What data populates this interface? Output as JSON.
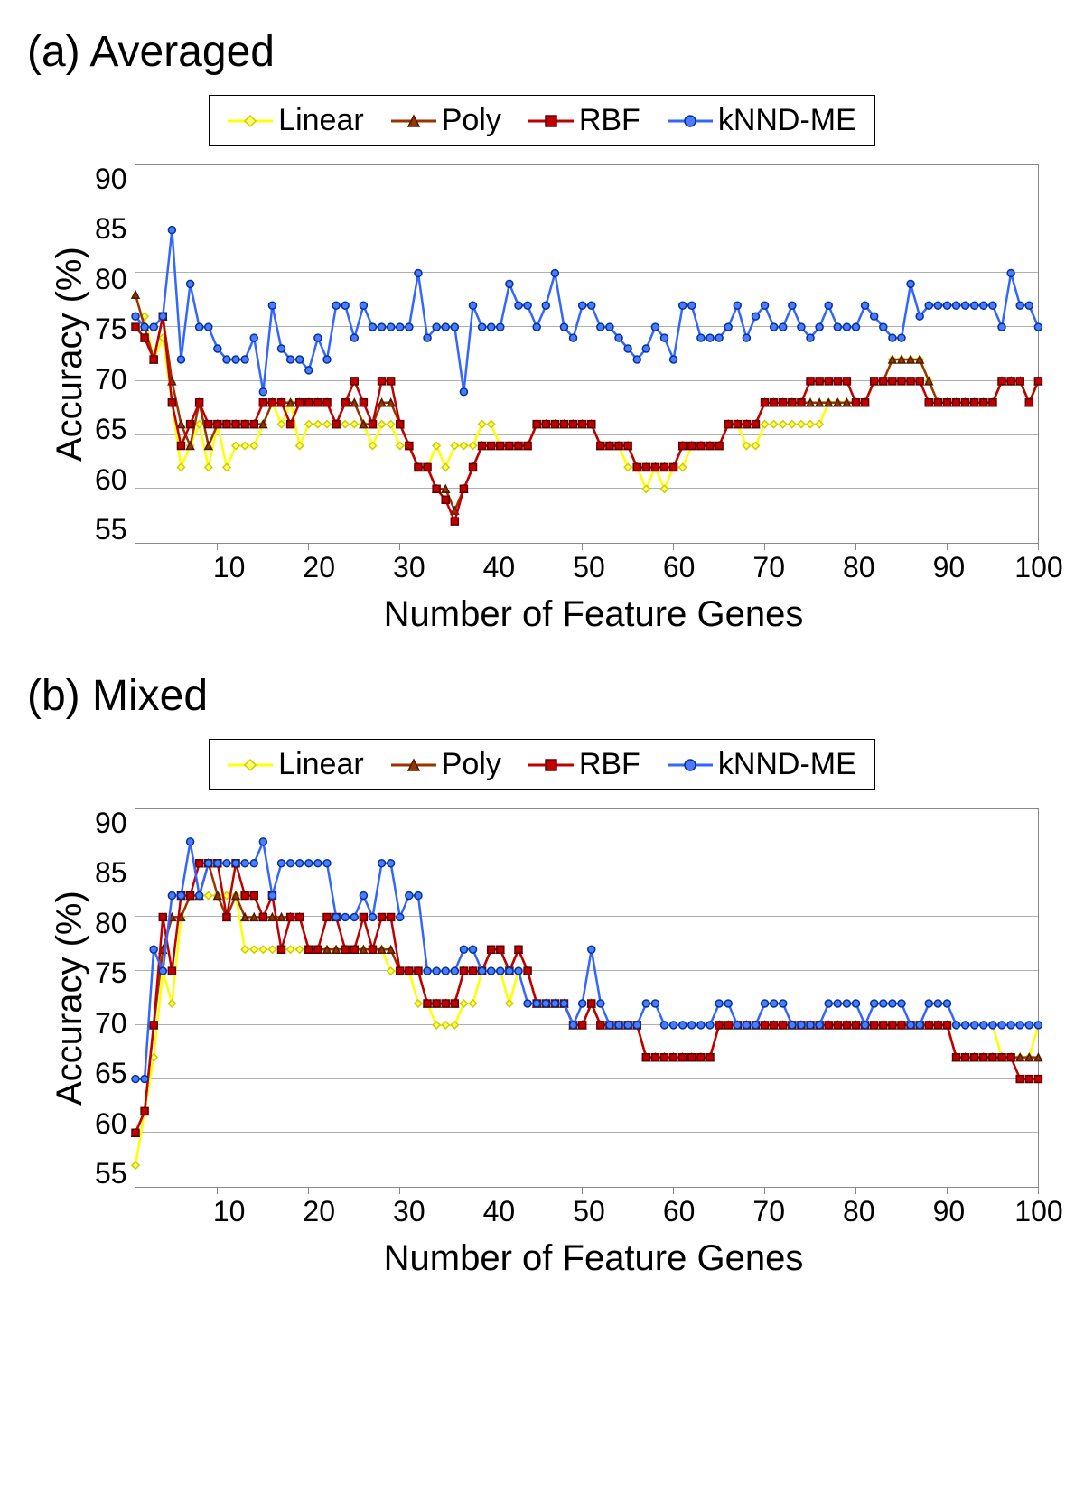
{
  "panel_a": {
    "title": "(a) Averaged",
    "legend": {
      "items": [
        {
          "label": "Linear",
          "color": "#ffff00",
          "marker": "diamond",
          "marker_fill": "#ffff66",
          "marker_stroke": "#cccc00"
        },
        {
          "label": "Poly",
          "color": "#993300",
          "marker": "triangle",
          "marker_fill": "#993300",
          "marker_stroke": "#4d1a00"
        },
        {
          "label": "RBF",
          "color": "#c00000",
          "marker": "square",
          "marker_fill": "#c00000",
          "marker_stroke": "#600000"
        },
        {
          "label": "kNND-ME",
          "color": "#3366ff",
          "marker": "circle",
          "marker_fill": "#4d7aff",
          "marker_stroke": "#003399"
        }
      ]
    },
    "chart": {
      "type": "line",
      "xlabel": "Number of Feature Genes",
      "ylabel": "Accuracy (%)",
      "xlim": [
        1,
        100
      ],
      "ylim": [
        55,
        90
      ],
      "yticks": [
        55,
        60,
        65,
        70,
        75,
        80,
        85,
        90
      ],
      "xticks": [
        10,
        20,
        30,
        40,
        50,
        60,
        70,
        80,
        90,
        100
      ],
      "background_color": "#ffffff",
      "grid_color": "#b0b0b0",
      "axis_color": "#888888",
      "label_fontsize": 40,
      "tick_fontsize": 32,
      "line_width": 2.5,
      "marker_size": 8,
      "series": [
        {
          "name": "Linear",
          "color": "#ffff00",
          "marker": "diamond",
          "marker_fill": "#ffff66",
          "marker_stroke": "#cccc00",
          "y": [
            76,
            76,
            72,
            74,
            68,
            62,
            64,
            66,
            62,
            66,
            62,
            64,
            64,
            64,
            66,
            68,
            66,
            68,
            64,
            66,
            66,
            66,
            66,
            66,
            66,
            66,
            64,
            66,
            66,
            64,
            64,
            62,
            62,
            64,
            62,
            64,
            64,
            64,
            66,
            66,
            64,
            64,
            64,
            64,
            66,
            66,
            66,
            66,
            66,
            66,
            66,
            64,
            64,
            64,
            62,
            62,
            60,
            62,
            60,
            62,
            62,
            64,
            64,
            64,
            64,
            66,
            66,
            64,
            64,
            66,
            66,
            66,
            66,
            66,
            66,
            66,
            68,
            68,
            68,
            68,
            68,
            70,
            70,
            72,
            72,
            72,
            72,
            70,
            68,
            68,
            68,
            68,
            68,
            68,
            68,
            70,
            70,
            70,
            68,
            70
          ]
        },
        {
          "name": "Poly",
          "color": "#993300",
          "marker": "triangle",
          "marker_fill": "#993300",
          "marker_stroke": "#4d1a00",
          "y": [
            78,
            75,
            72,
            76,
            70,
            66,
            64,
            68,
            64,
            66,
            66,
            66,
            66,
            66,
            66,
            68,
            68,
            68,
            68,
            68,
            68,
            68,
            66,
            68,
            68,
            66,
            66,
            68,
            68,
            66,
            64,
            62,
            62,
            60,
            60,
            58,
            60,
            62,
            64,
            64,
            64,
            64,
            64,
            64,
            66,
            66,
            66,
            66,
            66,
            66,
            66,
            64,
            64,
            64,
            64,
            62,
            62,
            62,
            62,
            62,
            64,
            64,
            64,
            64,
            64,
            66,
            66,
            66,
            66,
            68,
            68,
            68,
            68,
            68,
            68,
            68,
            68,
            68,
            68,
            68,
            68,
            70,
            70,
            72,
            72,
            72,
            72,
            70,
            68,
            68,
            68,
            68,
            68,
            68,
            68,
            70,
            70,
            70,
            68,
            70
          ]
        },
        {
          "name": "RBF",
          "color": "#c00000",
          "marker": "square",
          "marker_fill": "#c00000",
          "marker_stroke": "#600000",
          "y": [
            75,
            74,
            72,
            76,
            68,
            64,
            66,
            68,
            66,
            66,
            66,
            66,
            66,
            66,
            68,
            68,
            68,
            66,
            68,
            68,
            68,
            68,
            66,
            68,
            70,
            68,
            66,
            70,
            70,
            66,
            64,
            62,
            62,
            60,
            59,
            57,
            60,
            62,
            64,
            64,
            64,
            64,
            64,
            64,
            66,
            66,
            66,
            66,
            66,
            66,
            66,
            64,
            64,
            64,
            64,
            62,
            62,
            62,
            62,
            62,
            64,
            64,
            64,
            64,
            64,
            66,
            66,
            66,
            66,
            68,
            68,
            68,
            68,
            68,
            70,
            70,
            70,
            70,
            70,
            68,
            68,
            70,
            70,
            70,
            70,
            70,
            70,
            68,
            68,
            68,
            68,
            68,
            68,
            68,
            68,
            70,
            70,
            70,
            68,
            70
          ]
        },
        {
          "name": "kNND-ME",
          "color": "#3366ff",
          "marker": "circle",
          "marker_fill": "#4d7aff",
          "marker_stroke": "#003399",
          "y": [
            76,
            75,
            75,
            76,
            84,
            72,
            79,
            75,
            75,
            73,
            72,
            72,
            72,
            74,
            69,
            77,
            73,
            72,
            72,
            71,
            74,
            72,
            77,
            77,
            74,
            77,
            75,
            75,
            75,
            75,
            75,
            80,
            74,
            75,
            75,
            75,
            69,
            77,
            75,
            75,
            75,
            79,
            77,
            77,
            75,
            77,
            80,
            75,
            74,
            77,
            77,
            75,
            75,
            74,
            73,
            72,
            73,
            75,
            74,
            72,
            77,
            77,
            74,
            74,
            74,
            75,
            77,
            74,
            76,
            77,
            75,
            75,
            77,
            75,
            74,
            75,
            77,
            75,
            75,
            75,
            77,
            76,
            75,
            74,
            74,
            79,
            76,
            77,
            77,
            77,
            77,
            77,
            77,
            77,
            77,
            75,
            80,
            77,
            77,
            75
          ]
        }
      ]
    }
  },
  "panel_b": {
    "title": "(b) Mixed",
    "legend": {
      "items": [
        {
          "label": "Linear",
          "color": "#ffff00",
          "marker": "diamond",
          "marker_fill": "#ffff66",
          "marker_stroke": "#cccc00"
        },
        {
          "label": "Poly",
          "color": "#993300",
          "marker": "triangle",
          "marker_fill": "#993300",
          "marker_stroke": "#4d1a00"
        },
        {
          "label": "RBF",
          "color": "#c00000",
          "marker": "square",
          "marker_fill": "#c00000",
          "marker_stroke": "#600000"
        },
        {
          "label": "kNND-ME",
          "color": "#3366ff",
          "marker": "circle",
          "marker_fill": "#4d7aff",
          "marker_stroke": "#003399"
        }
      ]
    },
    "chart": {
      "type": "line",
      "xlabel": "Number of Feature Genes",
      "ylabel": "Accuracy (%)",
      "xlim": [
        1,
        100
      ],
      "ylim": [
        55,
        90
      ],
      "yticks": [
        55,
        60,
        65,
        70,
        75,
        80,
        85,
        90
      ],
      "xticks": [
        10,
        20,
        30,
        40,
        50,
        60,
        70,
        80,
        90,
        100
      ],
      "background_color": "#ffffff",
      "grid_color": "#b0b0b0",
      "axis_color": "#888888",
      "label_fontsize": 40,
      "tick_fontsize": 32,
      "line_width": 2.5,
      "marker_size": 8,
      "series": [
        {
          "name": "Linear",
          "color": "#ffff00",
          "marker": "diamond",
          "marker_fill": "#ffff66",
          "marker_stroke": "#cccc00",
          "y": [
            57,
            62,
            67,
            75,
            72,
            80,
            82,
            82,
            82,
            82,
            82,
            82,
            77,
            77,
            77,
            77,
            77,
            77,
            77,
            77,
            77,
            77,
            77,
            77,
            77,
            77,
            77,
            77,
            75,
            75,
            75,
            72,
            72,
            70,
            70,
            70,
            72,
            72,
            75,
            75,
            75,
            72,
            75,
            75,
            72,
            72,
            72,
            72,
            70,
            70,
            72,
            70,
            70,
            70,
            70,
            70,
            67,
            67,
            67,
            67,
            67,
            67,
            67,
            67,
            70,
            70,
            70,
            70,
            70,
            70,
            70,
            70,
            70,
            70,
            70,
            70,
            70,
            70,
            70,
            70,
            70,
            70,
            70,
            70,
            70,
            70,
            70,
            70,
            70,
            70,
            70,
            70,
            70,
            70,
            70,
            67,
            67,
            67,
            67,
            70
          ]
        },
        {
          "name": "Poly",
          "color": "#993300",
          "marker": "triangle",
          "marker_fill": "#993300",
          "marker_stroke": "#4d1a00",
          "y": [
            60,
            62,
            70,
            77,
            80,
            80,
            82,
            82,
            85,
            82,
            80,
            82,
            80,
            80,
            80,
            80,
            80,
            80,
            80,
            77,
            77,
            77,
            77,
            77,
            77,
            77,
            77,
            77,
            77,
            75,
            75,
            75,
            72,
            72,
            72,
            72,
            75,
            75,
            75,
            77,
            77,
            75,
            77,
            75,
            72,
            72,
            72,
            72,
            70,
            70,
            72,
            70,
            70,
            70,
            70,
            70,
            67,
            67,
            67,
            67,
            67,
            67,
            67,
            67,
            70,
            70,
            70,
            70,
            70,
            70,
            70,
            70,
            70,
            70,
            70,
            70,
            70,
            70,
            70,
            70,
            70,
            70,
            70,
            70,
            70,
            70,
            70,
            70,
            70,
            70,
            67,
            67,
            67,
            67,
            67,
            67,
            67,
            67,
            67,
            67
          ]
        },
        {
          "name": "RBF",
          "color": "#c00000",
          "marker": "square",
          "marker_fill": "#c00000",
          "marker_stroke": "#600000",
          "y": [
            60,
            62,
            70,
            80,
            75,
            82,
            82,
            85,
            85,
            85,
            80,
            85,
            82,
            82,
            80,
            82,
            77,
            80,
            80,
            77,
            77,
            80,
            80,
            77,
            77,
            80,
            77,
            80,
            80,
            75,
            75,
            75,
            72,
            72,
            72,
            72,
            75,
            75,
            75,
            77,
            77,
            75,
            77,
            75,
            72,
            72,
            72,
            72,
            70,
            70,
            72,
            70,
            70,
            70,
            70,
            70,
            67,
            67,
            67,
            67,
            67,
            67,
            67,
            67,
            70,
            70,
            70,
            70,
            70,
            70,
            70,
            70,
            70,
            70,
            70,
            70,
            70,
            70,
            70,
            70,
            70,
            70,
            70,
            70,
            70,
            70,
            70,
            70,
            70,
            70,
            67,
            67,
            67,
            67,
            67,
            67,
            67,
            65,
            65,
            65
          ]
        },
        {
          "name": "kNND-ME",
          "color": "#3366ff",
          "marker": "circle",
          "marker_fill": "#4d7aff",
          "marker_stroke": "#003399",
          "y": [
            65,
            65,
            77,
            75,
            82,
            82,
            87,
            82,
            85,
            85,
            85,
            85,
            85,
            85,
            87,
            82,
            85,
            85,
            85,
            85,
            85,
            85,
            80,
            80,
            80,
            82,
            80,
            85,
            85,
            80,
            82,
            82,
            75,
            75,
            75,
            75,
            77,
            77,
            75,
            75,
            75,
            75,
            75,
            72,
            72,
            72,
            72,
            72,
            70,
            72,
            77,
            72,
            70,
            70,
            70,
            70,
            72,
            72,
            70,
            70,
            70,
            70,
            70,
            70,
            72,
            72,
            70,
            70,
            70,
            72,
            72,
            72,
            70,
            70,
            70,
            70,
            72,
            72,
            72,
            72,
            70,
            72,
            72,
            72,
            72,
            70,
            70,
            72,
            72,
            72,
            70,
            70,
            70,
            70,
            70,
            70,
            70,
            70,
            70,
            70
          ]
        }
      ]
    }
  }
}
